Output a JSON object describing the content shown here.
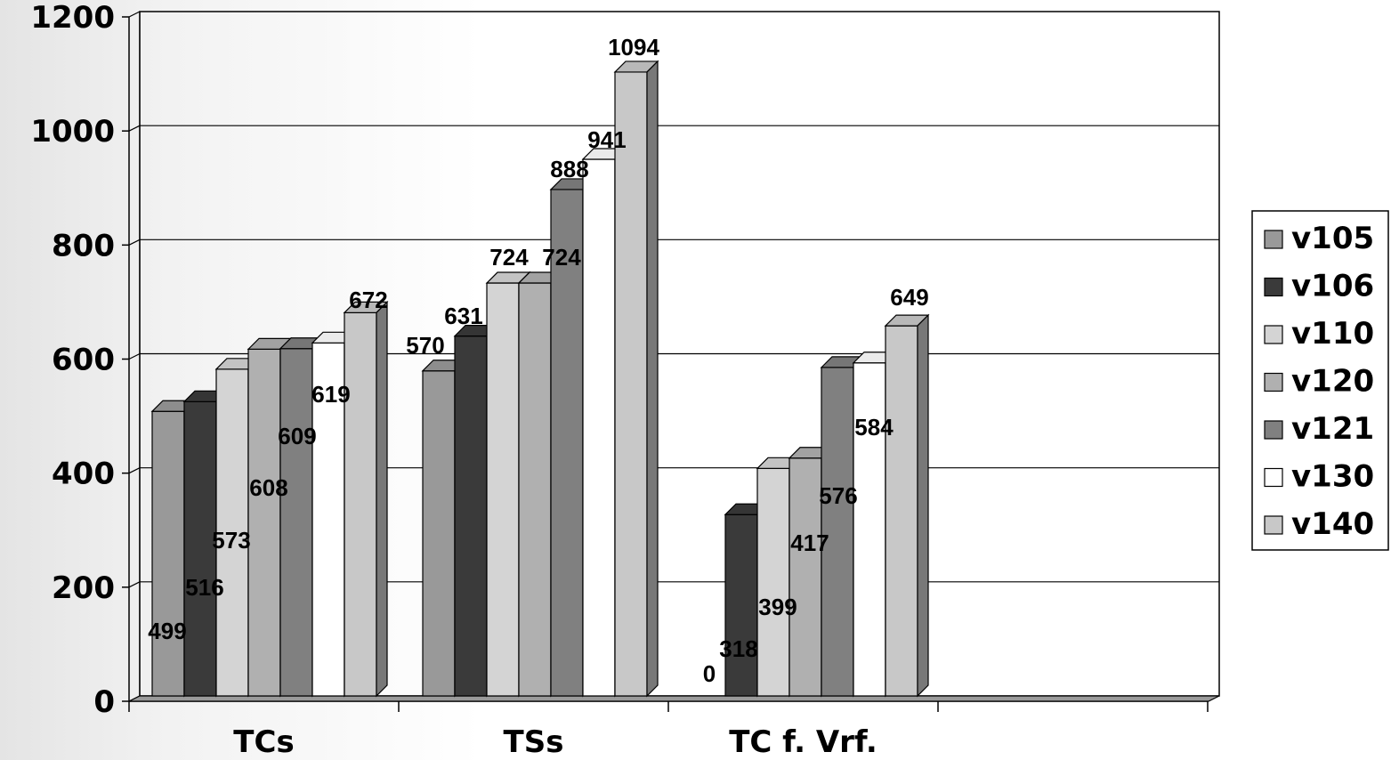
{
  "chart_data": {
    "type": "bar",
    "categories": [
      "TCs",
      "TSs",
      "TC f. Vrf."
    ],
    "series": [
      {
        "name": "v105",
        "values": [
          499,
          570,
          0
        ],
        "color": "#999999"
      },
      {
        "name": "v106",
        "values": [
          516,
          631,
          318
        ],
        "color": "#3a3a3a"
      },
      {
        "name": "v110",
        "values": [
          573,
          724,
          399
        ],
        "color": "#d4d4d4"
      },
      {
        "name": "v120",
        "values": [
          608,
          724,
          417
        ],
        "color": "#b0b0b0"
      },
      {
        "name": "v121",
        "values": [
          609,
          888,
          576
        ],
        "color": "#808080"
      },
      {
        "name": "v130",
        "values": [
          619,
          941,
          584
        ],
        "color": "#ffffff"
      },
      {
        "name": "v140",
        "values": [
          672,
          1094,
          649
        ],
        "color": "#c8c8c8"
      }
    ],
    "y_ticks": [
      "0",
      "200",
      "400",
      "600",
      "800",
      "1000",
      "1200"
    ],
    "ylim": [
      0,
      1200
    ],
    "grid": true,
    "legend_position": "right",
    "title": "",
    "xlabel": "",
    "ylabel": ""
  }
}
